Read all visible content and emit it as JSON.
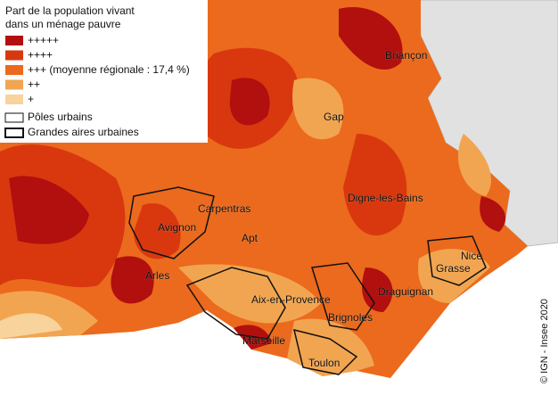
{
  "legend": {
    "title": [
      "Part de la population vivant",
      "dans un ménage pauvre"
    ],
    "classes": [
      {
        "label": "+++++",
        "color": "#b20f0f"
      },
      {
        "label": "++++",
        "color": "#d9380f"
      },
      {
        "label": "+++ (moyenne régionale : 17,4 %)",
        "color": "#eb6a1d"
      },
      {
        "label": "++",
        "color": "#f2a550"
      },
      {
        "label": "+",
        "color": "#f8d39c"
      }
    ],
    "outlines": [
      "Pôles urbains",
      "Grandes aires urbaines"
    ]
  },
  "cities": [
    "Briançon",
    "Gap",
    "Digne-les-Bains",
    "Carpentras",
    "Avignon",
    "Apt",
    "Nice",
    "Grasse",
    "Arles",
    "Aix-en-Provence",
    "Draguignan",
    "Brignoles",
    "Marseille",
    "Toulon"
  ],
  "credit": "© IGN - Insee 2020"
}
